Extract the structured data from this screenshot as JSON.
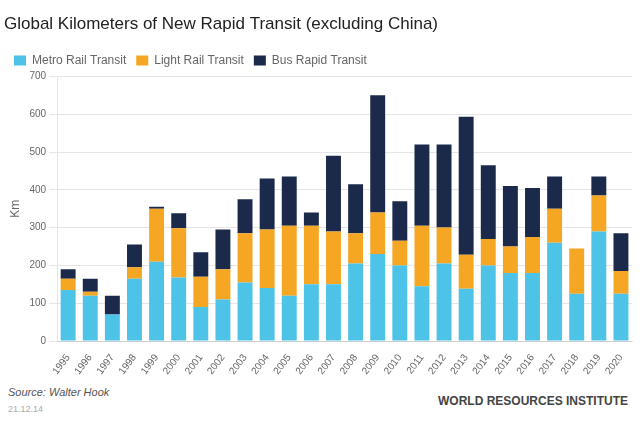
{
  "chart_data": {
    "type": "bar",
    "stacked": true,
    "title": "Global Kilometers of New Rapid Transit (excluding China)",
    "y_label": "Km",
    "annotations": [
      "Source: Walter Hook",
      "21.12.14",
      "WORLD RESOURCES INSTITUTE"
    ],
    "categories": [
      "1995",
      "1996",
      "1997",
      "1998",
      "1999",
      "2000",
      "2001",
      "2002",
      "2003",
      "2004",
      "2005",
      "2006",
      "2007",
      "2008",
      "2009",
      "2010",
      "2011",
      "2012",
      "2013",
      "2014",
      "2015",
      "2016",
      "2017",
      "2018",
      "2019",
      "2020"
    ],
    "series": [
      {
        "name": "Metro Rail Transit",
        "color": "#4dc3e8",
        "values": [
          135,
          120,
          70,
          165,
          210,
          168,
          90,
          110,
          155,
          140,
          120,
          150,
          150,
          205,
          230,
          200,
          145,
          205,
          138,
          200,
          180,
          180,
          260,
          125,
          290,
          125
        ]
      },
      {
        "name": "Light Rail Transit",
        "color": "#f5a623",
        "values": [
          30,
          10,
          0,
          30,
          140,
          130,
          80,
          80,
          130,
          155,
          185,
          155,
          140,
          80,
          110,
          65,
          160,
          95,
          90,
          70,
          70,
          95,
          90,
          120,
          95,
          60
        ]
      },
      {
        "name": "Bus Rapid Transit",
        "color": "#1b2a4a",
        "values": [
          25,
          35,
          50,
          60,
          5,
          40,
          65,
          105,
          90,
          135,
          130,
          35,
          200,
          130,
          310,
          105,
          215,
          220,
          365,
          195,
          160,
          130,
          85,
          0,
          50,
          100
        ]
      }
    ],
    "ylim": [
      0,
      700
    ],
    "yticks": [
      0,
      100,
      200,
      300,
      400,
      500,
      600,
      700
    ],
    "grid": true,
    "legend": "upper left"
  }
}
